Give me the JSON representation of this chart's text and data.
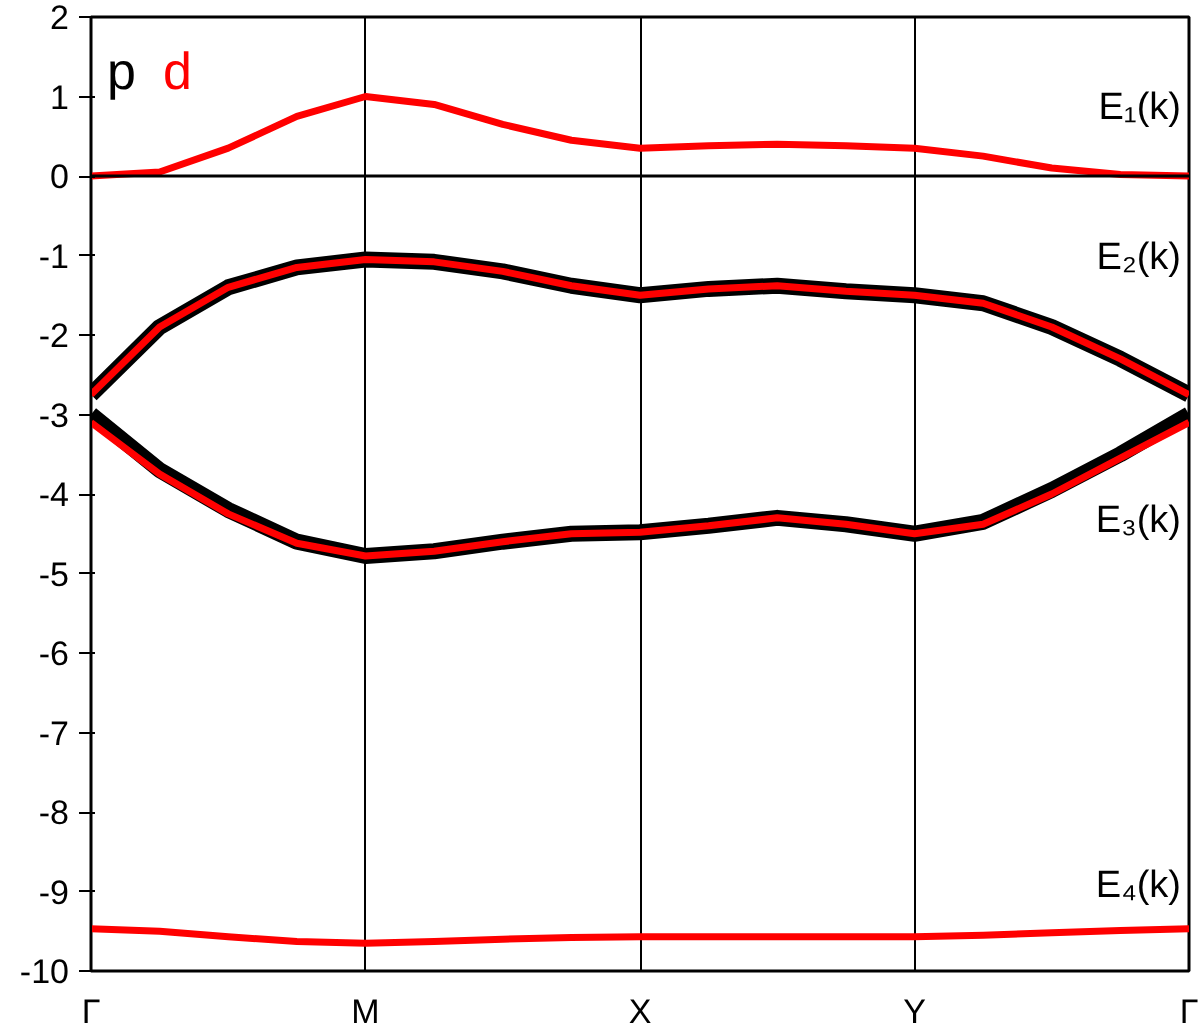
{
  "chart_data": {
    "type": "line",
    "categories": [
      "Γ",
      null,
      null,
      null,
      "M",
      null,
      null,
      null,
      "X",
      null,
      null,
      null,
      "Y",
      null,
      null,
      null,
      "Γ"
    ],
    "ylim": [
      -10,
      2
    ],
    "yticks": [
      -10,
      -9,
      -8,
      -7,
      -6,
      -5,
      -4,
      -3,
      -2,
      -1,
      0,
      1,
      2
    ],
    "grid": "x",
    "legend": "top left",
    "marker": "none",
    "line_style": "solid",
    "series": [
      {
        "color": "#000000",
        "values": [
          -2.75,
          -1.9,
          -1.4,
          -1.15,
          -1.05,
          -1.08,
          -1.2,
          -1.38,
          -1.5,
          -1.42,
          -1.38,
          -1.45,
          -1.5,
          -1.6,
          -1.9,
          -2.3,
          -2.75
        ]
      },
      {
        "name": "p",
        "color": "#000000",
        "values": [
          -3.0,
          -3.7,
          -4.2,
          -4.6,
          -4.78,
          -4.72,
          -4.6,
          -4.5,
          -4.48,
          -4.4,
          -4.3,
          -4.38,
          -4.5,
          -4.35,
          -3.95,
          -3.5,
          -3.0
        ]
      },
      {
        "name": "d",
        "color": "#ff0000",
        "values": [
          0,
          0.05,
          0.35,
          0.75,
          1.0,
          0.9,
          0.65,
          0.45,
          0.35,
          0.38,
          0.4,
          0.38,
          0.35,
          0.25,
          0.1,
          0.02,
          0
        ]
      },
      {
        "color": "#ff0000",
        "values": [
          -2.75,
          -1.9,
          -1.4,
          -1.15,
          -1.05,
          -1.08,
          -1.2,
          -1.38,
          -1.5,
          -1.42,
          -1.38,
          -1.45,
          -1.5,
          -1.6,
          -1.9,
          -2.3,
          -2.75
        ]
      },
      {
        "color": "#ff0000",
        "values": [
          -3.1,
          -3.75,
          -4.25,
          -4.62,
          -4.78,
          -4.72,
          -4.6,
          -4.5,
          -4.48,
          -4.4,
          -4.3,
          -4.38,
          -4.5,
          -4.38,
          -4.0,
          -3.55,
          -3.1
        ]
      },
      {
        "color": "#ff0000",
        "values": [
          -9.47,
          -9.5,
          -9.57,
          -9.63,
          -9.65,
          -9.63,
          -9.6,
          -9.58,
          -9.57,
          -9.57,
          -9.57,
          -9.57,
          -9.57,
          -9.55,
          -9.52,
          -9.49,
          -9.47
        ]
      }
    ],
    "ref_lines": [
      {
        "axis": "y",
        "value": 0,
        "color": "#000000"
      }
    ],
    "annotations": [
      "E₁(k)",
      "E₂(k)",
      "E₃(k)",
      "E₄(k)"
    ]
  }
}
